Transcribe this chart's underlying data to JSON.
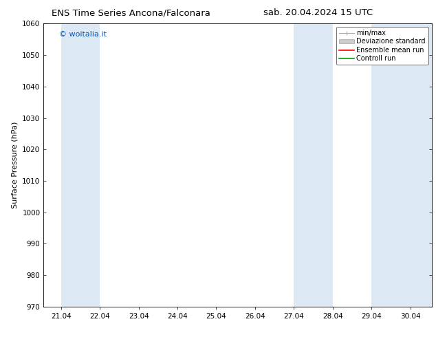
{
  "title_left": "ENS Time Series Ancona/Falconara",
  "title_right": "sab. 20.04.2024 15 UTC",
  "ylabel": "Surface Pressure (hPa)",
  "ylim": [
    970,
    1060
  ],
  "yticks": [
    970,
    980,
    990,
    1000,
    1010,
    1020,
    1030,
    1040,
    1050,
    1060
  ],
  "xtick_labels": [
    "21.04",
    "22.04",
    "23.04",
    "24.04",
    "25.04",
    "26.04",
    "27.04",
    "28.04",
    "29.04",
    "30.04"
  ],
  "xtick_positions": [
    21.0,
    22.0,
    23.0,
    24.0,
    25.0,
    26.0,
    27.0,
    28.0,
    29.0,
    30.0
  ],
  "xlim": [
    20.55,
    30.55
  ],
  "shaded_bands": [
    {
      "x_start": 21.0,
      "x_end": 22.0
    },
    {
      "x_start": 27.0,
      "x_end": 28.0
    },
    {
      "x_start": 29.0,
      "x_end": 30.0
    },
    {
      "x_start": 30.0,
      "x_end": 30.55
    }
  ],
  "band_color": "#dce9f5",
  "watermark": "© woitalia.it",
  "watermark_color": "#0055bb",
  "legend_items": [
    {
      "label": "min/max",
      "color": "#aaaaaa",
      "type": "errorbar"
    },
    {
      "label": "Deviazione standard",
      "color": "#cccccc",
      "type": "bar"
    },
    {
      "label": "Ensemble mean run",
      "color": "#ff0000",
      "type": "line"
    },
    {
      "label": "Controll run",
      "color": "#009900",
      "type": "line"
    }
  ],
  "bg_color": "#ffffff",
  "title_fontsize": 9.5,
  "tick_fontsize": 7.5,
  "ylabel_fontsize": 8,
  "watermark_fontsize": 8,
  "legend_fontsize": 7
}
